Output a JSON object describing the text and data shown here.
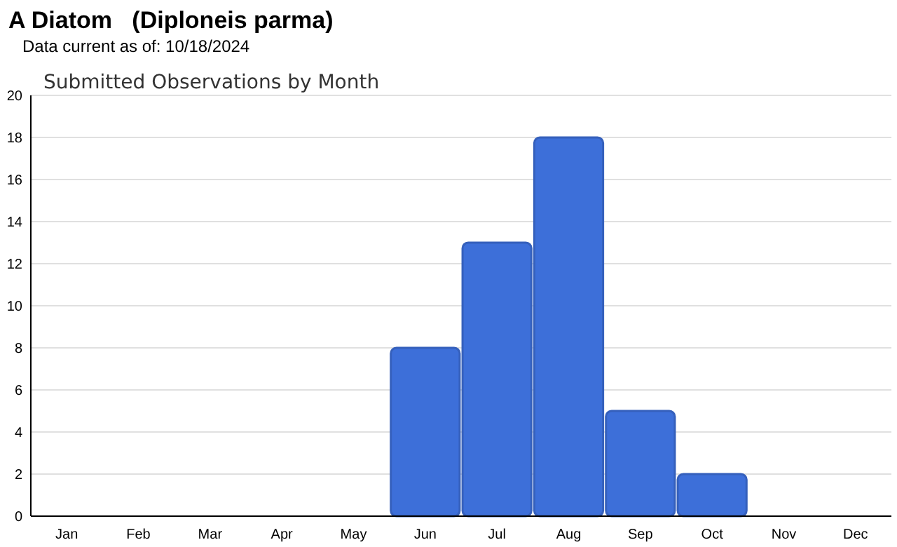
{
  "chart_data": {
    "type": "bar",
    "title": "A Diatom   (Diploneis parma)",
    "subtitle": "Submitted Observations by Month",
    "annotations": [
      "Data current as of: 10/18/2024"
    ],
    "categories": [
      "Jan",
      "Feb",
      "Mar",
      "Apr",
      "May",
      "Jun",
      "Jul",
      "Aug",
      "Sep",
      "Oct",
      "Nov",
      "Dec"
    ],
    "values": [
      0,
      0,
      0,
      0,
      0,
      8,
      13,
      18,
      5,
      2,
      0,
      0
    ],
    "color": "#3d6fd9",
    "ylim": [
      0,
      20
    ],
    "yticks": [
      0,
      2,
      4,
      6,
      8,
      10,
      12,
      14,
      16,
      18,
      20
    ],
    "grid": "y"
  }
}
